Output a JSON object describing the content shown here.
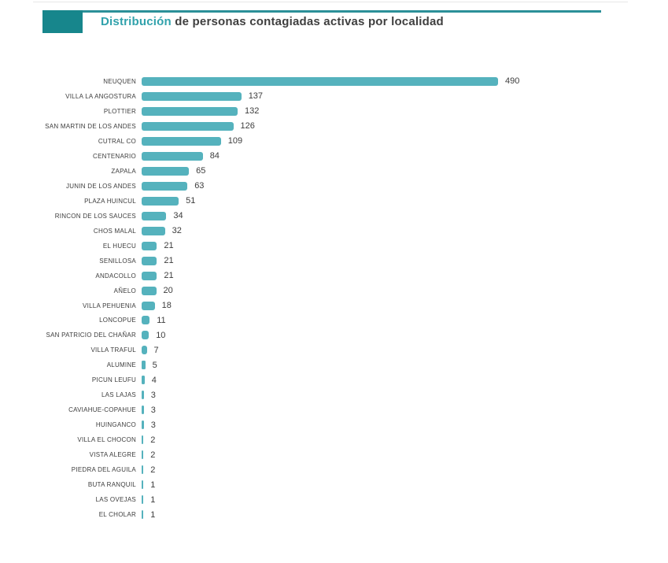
{
  "header": {
    "title_highlight": "Distribución",
    "title_rest": " de personas contagiadas activas por localidad"
  },
  "colors": {
    "accent_dark": "#17868c",
    "accent_line": "#2b9098",
    "bar": "#55b2bd",
    "title_highlight": "#31a2ac",
    "text": "#3f3f3f"
  },
  "chart_data": {
    "type": "bar",
    "orientation": "horizontal",
    "title": "Distribución de personas contagiadas activas por localidad",
    "categories": [
      "NEUQUEN",
      "VILLA LA ANGOSTURA",
      "PLOTTIER",
      "SAN MARTIN DE LOS ANDES",
      "CUTRAL CO",
      "CENTENARIO",
      "ZAPALA",
      "JUNIN DE LOS ANDES",
      "PLAZA HUINCUL",
      "RINCON DE LOS SAUCES",
      "CHOS MALAL",
      "EL HUECU",
      "SENILLOSA",
      "ANDACOLLO",
      "AÑELO",
      "VILLA PEHUENIA",
      "LONCOPUE",
      "SAN PATRICIO DEL CHAÑAR",
      "VILLA TRAFUL",
      "ALUMINE",
      "PICUN LEUFU",
      "LAS LAJAS",
      "CAVIAHUE-COPAHUE",
      "HUINGANCO",
      "VILLA EL CHOCON",
      "VISTA ALEGRE",
      "PIEDRA DEL AGUILA",
      "BUTA RANQUIL",
      "LAS OVEJAS",
      "EL CHOLAR"
    ],
    "values": [
      490,
      137,
      132,
      126,
      109,
      84,
      65,
      63,
      51,
      34,
      32,
      21,
      21,
      21,
      20,
      18,
      11,
      10,
      7,
      5,
      4,
      3,
      3,
      3,
      2,
      2,
      2,
      1,
      1,
      1
    ],
    "xlim": [
      0,
      490
    ],
    "value_labels": true,
    "grid": false,
    "legend": false
  }
}
